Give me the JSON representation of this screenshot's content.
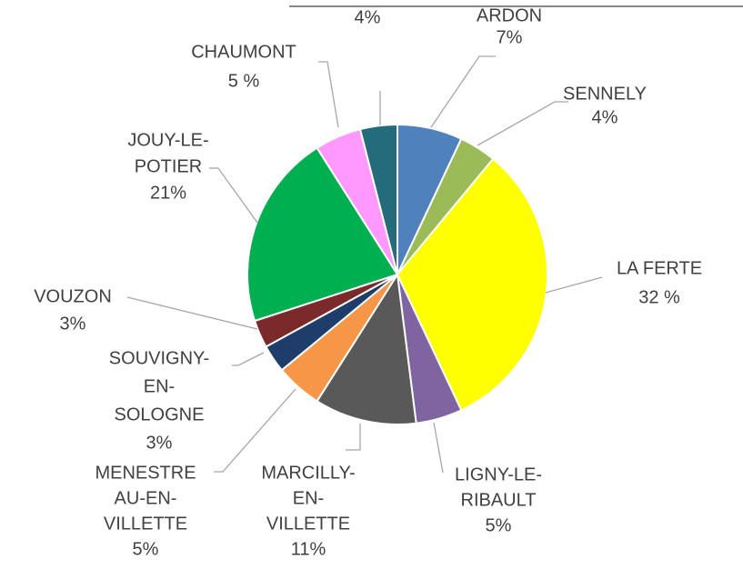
{
  "chart_data": {
    "type": "pie",
    "categories": [
      [
        "ARDON"
      ],
      [
        "SENNELY"
      ],
      [
        "LA FERTE"
      ],
      [
        "LIGNY-LE-",
        "RIBAULT"
      ],
      [
        "MARCILLY-",
        "EN-",
        "VILLETTE"
      ],
      [
        "MENESTRE",
        "AU-EN-",
        "VILLETTE"
      ],
      [
        "SOUVIGNY-",
        "EN-",
        "SOLOGNE"
      ],
      [
        "VOUZON"
      ],
      [
        "JOUY-LE-",
        "POTIER"
      ],
      [
        "CHAUMONT"
      ],
      null
    ],
    "values": [
      7,
      4,
      32,
      5,
      11,
      5,
      3,
      3,
      21,
      5,
      4
    ],
    "value_labels": [
      "7%",
      "4%",
      "32 %",
      "5%",
      "11%",
      "5%",
      "3%",
      "3%",
      "21%",
      "5 %",
      "4%"
    ],
    "colors": [
      "#4f81bd",
      "#9bbb59",
      "#ffff00",
      "#8064a2",
      "#595959",
      "#f79646",
      "#1f3d6b",
      "#7a2a2a",
      "#00b050",
      "#ff99ff",
      "#246b7c"
    ]
  }
}
